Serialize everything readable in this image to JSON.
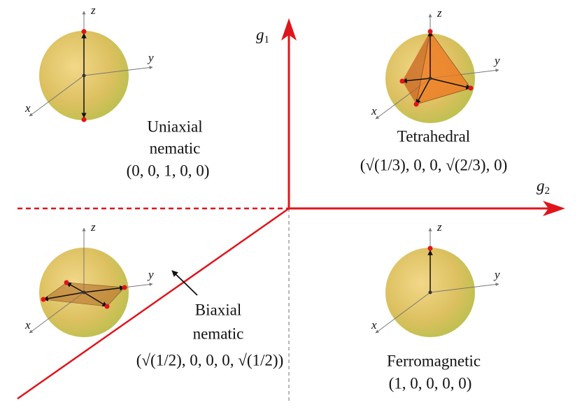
{
  "axes": {
    "vertical": {
      "symbol": "g",
      "subscript": "1"
    },
    "horizontal": {
      "symbol": "g",
      "subscript": "2"
    }
  },
  "spheres": [
    {
      "z": "z",
      "y": "y",
      "x": "x"
    },
    {
      "z": "z",
      "y": "y",
      "x": "x"
    },
    {
      "z": "z",
      "y": "y",
      "x": "x"
    },
    {
      "z": "z",
      "y": "y",
      "x": "x"
    }
  ],
  "phases": [
    {
      "name_lines": [
        "Uniaxial",
        "nematic"
      ],
      "coordinates": "(0, 0, 1, 0, 0)"
    },
    {
      "name_lines": [
        "Tetrahedral"
      ],
      "coordinates": "(√(1/3), 0, 0, √(2/3), 0)"
    },
    {
      "name_lines": [
        "Biaxial",
        "nematic"
      ],
      "coordinates": "(√(1/2), 0, 0, 0, √(1/2))"
    },
    {
      "name_lines": [
        "Ferromagnetic"
      ],
      "coordinates": "(1, 0, 0, 0, 0)"
    }
  ]
}
